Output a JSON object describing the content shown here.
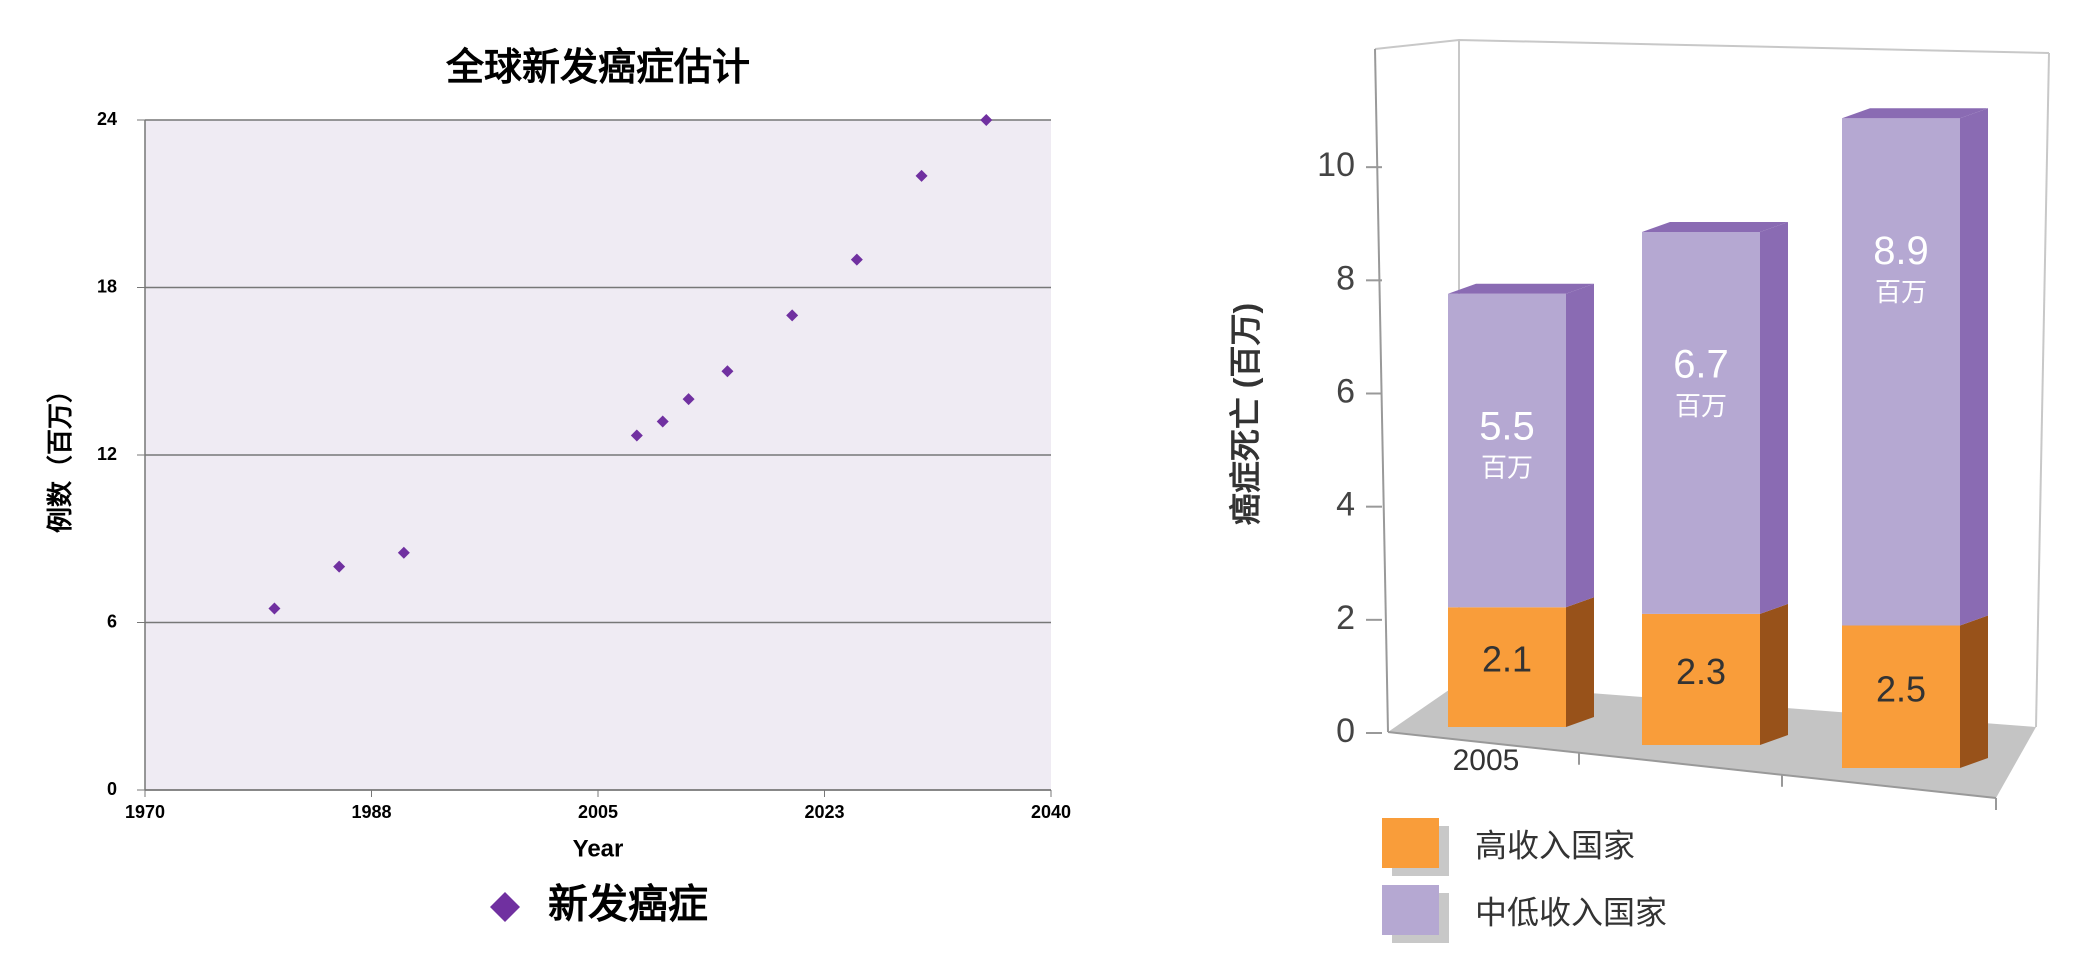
{
  "chart_data": [
    {
      "type": "scatter",
      "title": "全球新发癌症估计",
      "x_label": "Year",
      "y_label": "例数（百万）",
      "xlim": [
        1970,
        2040
      ],
      "xticks": [
        1970,
        {
          "value": 1987.5,
          "label": "1988"
        },
        2005,
        {
          "value": 2022.5,
          "label": "2023"
        },
        2040
      ],
      "ylim": [
        0,
        24
      ],
      "yticks": [
        0,
        6,
        12,
        18,
        24
      ],
      "grid": true,
      "background": "#efebf3",
      "series": [
        {
          "name": "新发癌症",
          "color": "#7030a0",
          "x": [
            1980,
            1985,
            1990,
            2008,
            2010,
            2012,
            2015,
            2020,
            2025,
            2030,
            2035
          ],
          "values": [
            6.5,
            8.0,
            8.5,
            12.7,
            13.2,
            14.0,
            15.0,
            17.0,
            19.0,
            22.0,
            24.0
          ]
        }
      ]
    },
    {
      "type": "bar3d",
      "stacked": true,
      "y_label": "癌症死亡 (百万)",
      "categories": [
        "2005",
        null,
        null
      ],
      "ylim": [
        0,
        12
      ],
      "yticks": [
        0,
        2,
        4,
        6,
        8,
        10
      ],
      "series": [
        {
          "name": "高收入国家",
          "color": "#f99d3a",
          "side_color": "#98521a",
          "values": [
            2.1,
            2.3,
            2.5
          ]
        },
        {
          "name": "中低收入国家",
          "color": "#b5a8d2",
          "side_color": "#8a6bb3",
          "values": [
            5.5,
            6.7,
            8.9
          ],
          "unit_label": "百万"
        }
      ]
    }
  ]
}
